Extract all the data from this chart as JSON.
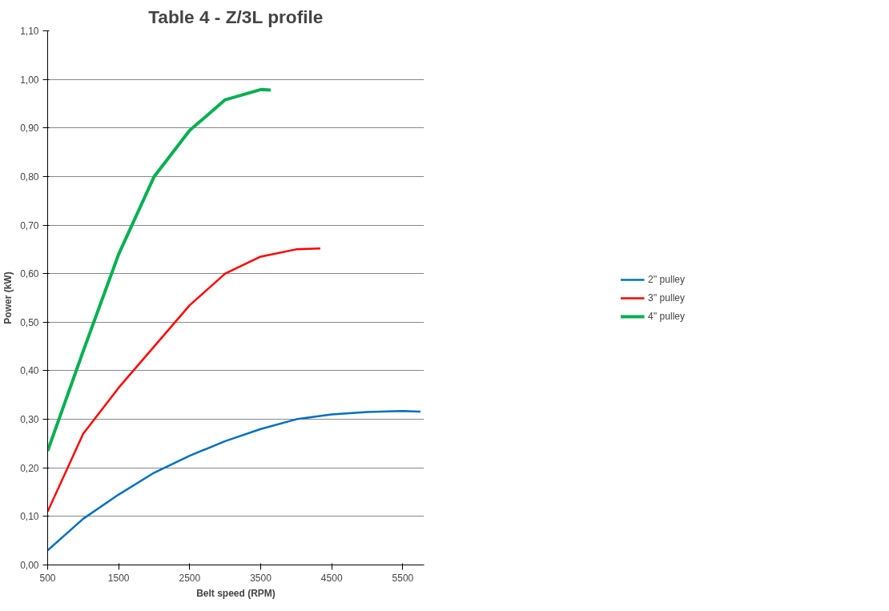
{
  "chart_data": {
    "type": "line",
    "title": "Table 4 - Z/3L profile",
    "xlabel": "Belt speed (RPM)",
    "ylabel": "Power (kW)",
    "xlim": [
      500,
      5800
    ],
    "xticks": [
      500,
      1500,
      2500,
      3500,
      4500,
      5500
    ],
    "ylim": [
      0,
      1.1
    ],
    "yticks": [
      {
        "value": 0,
        "label": "0,00"
      },
      {
        "value": 0.1,
        "label": "0,10"
      },
      {
        "value": 0.2,
        "label": "0,20"
      },
      {
        "value": 0.3,
        "label": "0,30"
      },
      {
        "value": 0.4,
        "label": "0,40"
      },
      {
        "value": 0.5,
        "label": "0,50"
      },
      {
        "value": 0.6,
        "label": "0,60"
      },
      {
        "value": 0.7,
        "label": "0,70"
      },
      {
        "value": 0.8,
        "label": "0,80"
      },
      {
        "value": 0.9,
        "label": "0,90"
      },
      {
        "value": 1.0,
        "label": "1,00"
      },
      {
        "value": 1.1,
        "label": "1,10"
      }
    ],
    "grid": "y",
    "legend": "right",
    "marker": "none",
    "line_style": "solid",
    "series": [
      {
        "name": "2'' pulley",
        "color": "#0070c0",
        "x": [
          500,
          1000,
          1500,
          2000,
          2500,
          3000,
          3500,
          4000,
          4500,
          5000,
          5500,
          5750
        ],
        "values": [
          0.03,
          0.095,
          0.145,
          0.19,
          0.225,
          0.255,
          0.28,
          0.3,
          0.31,
          0.315,
          0.317,
          0.316
        ]
      },
      {
        "name": "3'' pulley",
        "color": "#ff0000",
        "x": [
          500,
          1000,
          1500,
          2000,
          2500,
          3000,
          3500,
          4000,
          4340
        ],
        "values": [
          0.11,
          0.27,
          0.365,
          0.45,
          0.535,
          0.6,
          0.635,
          0.65,
          0.652
        ]
      },
      {
        "name": "4'' pulley",
        "color": "#00b050",
        "x": [
          500,
          1000,
          1500,
          2000,
          2500,
          3000,
          3500,
          3640
        ],
        "values": [
          0.235,
          0.44,
          0.64,
          0.8,
          0.895,
          0.958,
          0.979,
          0.978
        ]
      }
    ]
  }
}
